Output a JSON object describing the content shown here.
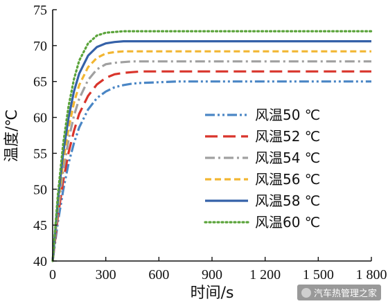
{
  "chart_data": {
    "type": "line",
    "xlabel": "时间/s",
    "ylabel": "温度/℃",
    "xlim": [
      0,
      1800
    ],
    "ylim": [
      40,
      75
    ],
    "xticks": [
      0,
      300,
      600,
      900,
      1200,
      1500,
      1800
    ],
    "xtick_labels": [
      "0",
      "300",
      "600",
      "900",
      "1 200",
      "1 500",
      "1 800"
    ],
    "yticks": [
      40,
      45,
      50,
      55,
      60,
      65,
      70,
      75
    ],
    "ytick_labels": [
      "40",
      "45",
      "50",
      "55",
      "60",
      "65",
      "70",
      "75"
    ],
    "grid": false,
    "legend_position": "right",
    "x": [
      0,
      30,
      60,
      90,
      120,
      150,
      200,
      250,
      300,
      350,
      400,
      450,
      500,
      600,
      700,
      800,
      900,
      1200,
      1500,
      1800
    ],
    "series": [
      {
        "name": "风温50 ℃",
        "color": "#4a86c5",
        "dash": "dash-dot-dot",
        "values": [
          40.0,
          45.5,
          49.9,
          53.6,
          56.4,
          58.6,
          61.1,
          62.7,
          63.6,
          64.2,
          64.5,
          64.7,
          64.8,
          64.9,
          65.0,
          65.0,
          65.0,
          65.0,
          65.0,
          65.0
        ]
      },
      {
        "name": "风温52 ℃",
        "color": "#d9342b",
        "dash": "long-dash",
        "values": [
          40.0,
          46.3,
          51.2,
          55.1,
          58.1,
          60.5,
          63.0,
          64.6,
          65.5,
          66.0,
          66.2,
          66.3,
          66.4,
          66.4,
          66.4,
          66.4,
          66.4,
          66.4,
          66.4,
          66.4
        ]
      },
      {
        "name": "风温54 ℃",
        "color": "#a0a0a0",
        "dash": "dash-dot",
        "values": [
          40.0,
          47.1,
          52.6,
          56.9,
          60.2,
          62.6,
          65.2,
          66.7,
          67.4,
          67.6,
          67.7,
          67.8,
          67.8,
          67.8,
          67.8,
          67.8,
          67.8,
          67.8,
          67.8,
          67.8
        ]
      },
      {
        "name": "风温56 ℃",
        "color": "#f2b632",
        "dash": "dash",
        "values": [
          40.0,
          47.9,
          53.9,
          58.5,
          62.0,
          64.5,
          67.0,
          68.3,
          68.9,
          69.1,
          69.2,
          69.2,
          69.2,
          69.2,
          69.2,
          69.2,
          69.2,
          69.2,
          69.2,
          69.2
        ]
      },
      {
        "name": "风温58 ℃",
        "color": "#3561a8",
        "dash": "solid",
        "values": [
          40.0,
          48.6,
          55.1,
          60.0,
          63.6,
          66.1,
          68.6,
          69.8,
          70.3,
          70.5,
          70.6,
          70.6,
          70.6,
          70.6,
          70.6,
          70.6,
          70.6,
          70.6,
          70.6,
          70.6
        ]
      },
      {
        "name": "风温60 ℃",
        "color": "#5aa33a",
        "dash": "dotted",
        "values": [
          40.0,
          49.4,
          56.4,
          61.6,
          65.3,
          67.9,
          70.3,
          71.4,
          71.8,
          71.9,
          72.0,
          72.0,
          72.0,
          72.0,
          72.0,
          72.0,
          72.0,
          72.0,
          72.0,
          72.0
        ]
      }
    ]
  },
  "watermark": {
    "text": "汽车热管理之家",
    "icon": "wechat-icon"
  }
}
